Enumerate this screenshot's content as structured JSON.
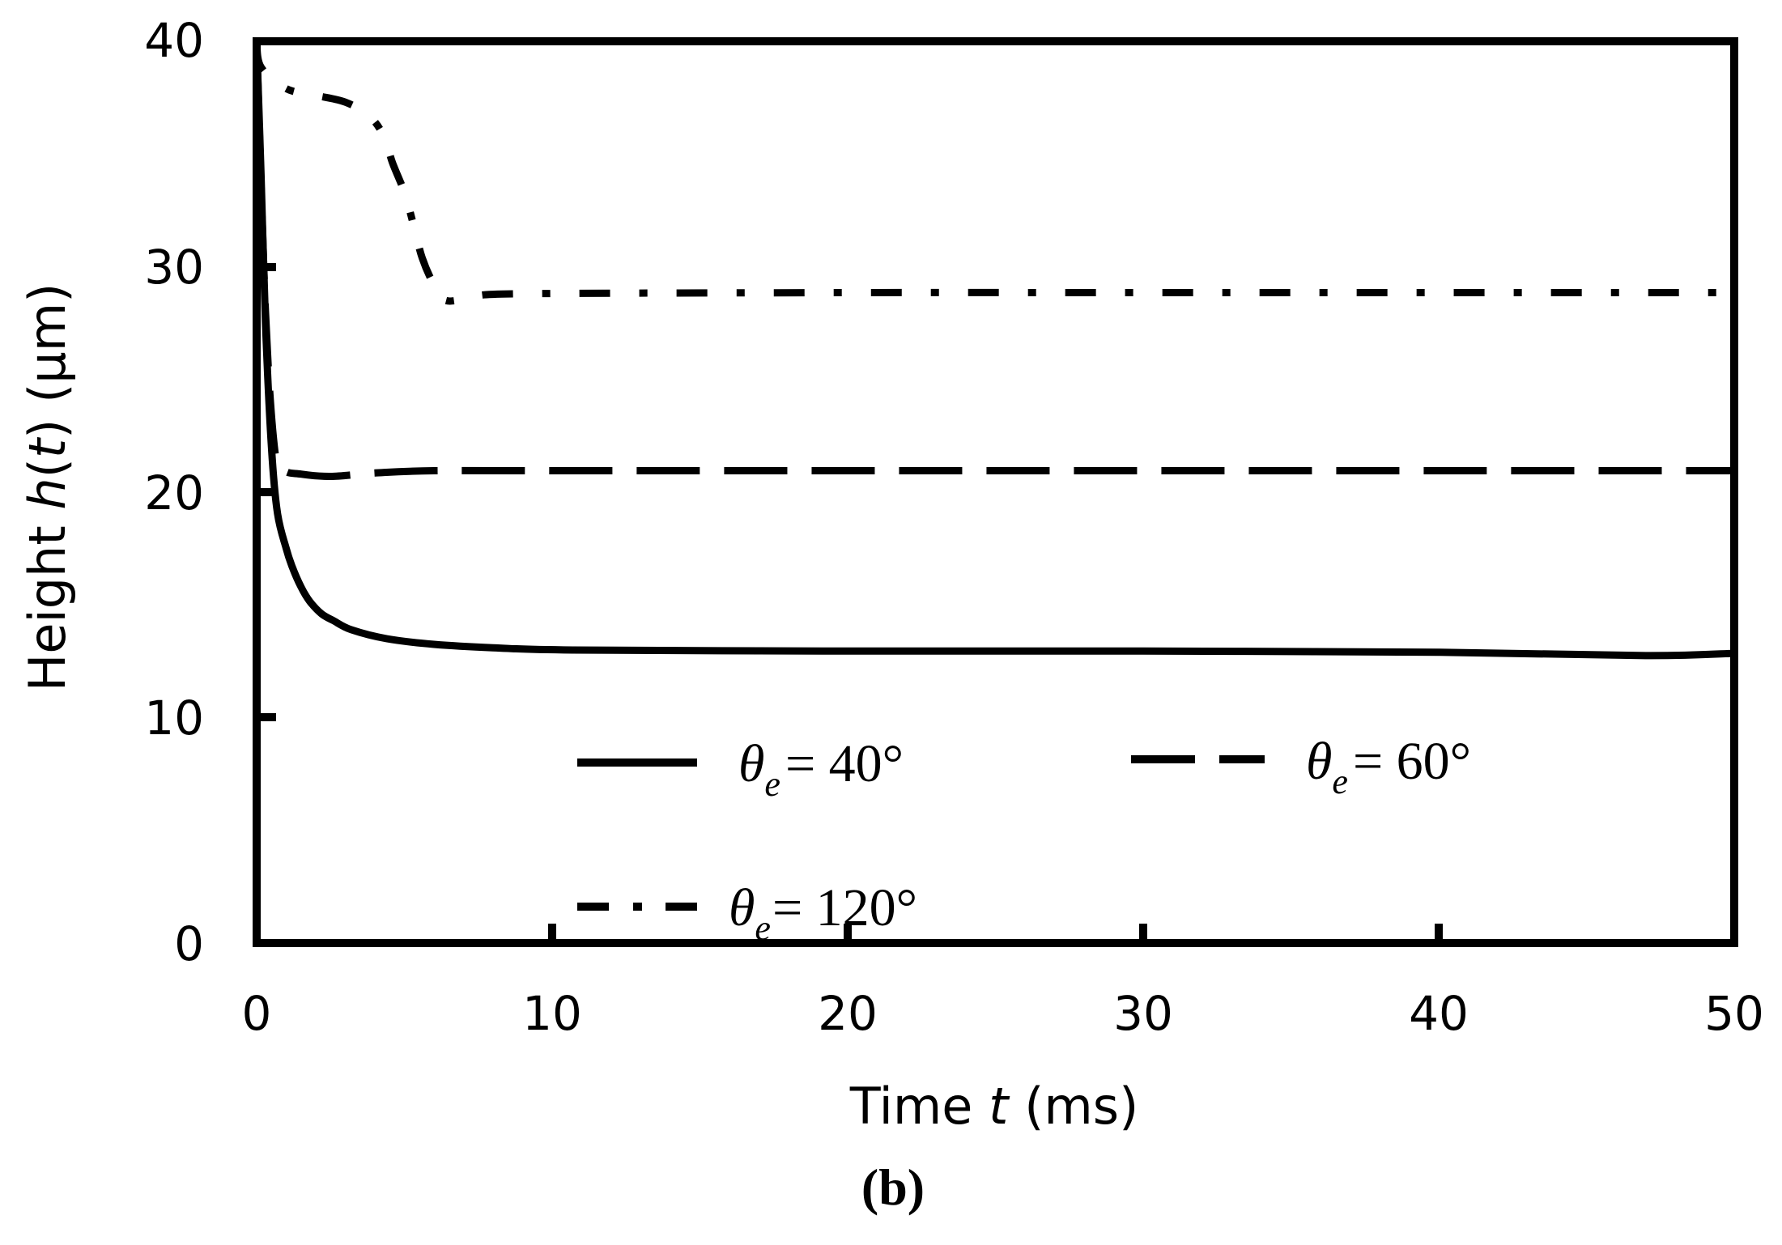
{
  "figure": {
    "panel_label": "(b)"
  },
  "axes": {
    "xlabel_prefix": "Time ",
    "xlabel_var": "t",
    "xlabel_suffix": " (ms)",
    "ylabel_prefix": "Height ",
    "ylabel_var": "h",
    "ylabel_paren_open": "(",
    "ylabel_arg": "t",
    "ylabel_suffix": ") (μm)",
    "xticks": [
      "0",
      "10",
      "20",
      "30",
      "40",
      "50"
    ],
    "yticks": [
      "0",
      "10",
      "20",
      "30",
      "40"
    ]
  },
  "legend": {
    "items": [
      {
        "symbol": "θ",
        "sub": "e",
        "text": "= 40°",
        "style": "solid"
      },
      {
        "symbol": "θ",
        "sub": "e",
        "text": "= 60°",
        "style": "dashed"
      },
      {
        "symbol": "θ",
        "sub": "e",
        "text": "= 120°",
        "style": "dashdot"
      }
    ]
  },
  "chart_data": {
    "type": "line",
    "title": "",
    "xlabel": "Time t (ms)",
    "ylabel": "Height h(t) (μm)",
    "xlim": [
      0,
      50
    ],
    "ylim": [
      0,
      40
    ],
    "grid": false,
    "legend_position": "inside lower center",
    "xticks": [
      0,
      10,
      20,
      30,
      40,
      50
    ],
    "yticks": [
      0,
      10,
      20,
      30,
      40
    ],
    "series": [
      {
        "name": "θe = 40°",
        "style": "solid",
        "x": [
          0,
          0.15,
          0.3,
          0.5,
          0.7,
          1.0,
          1.2,
          1.5,
          1.8,
          2.2,
          2.6,
          3.2,
          4.4,
          6,
          8,
          10.7,
          20,
          30,
          40,
          47,
          50
        ],
        "y": [
          40,
          34,
          27.5,
          22,
          19.1,
          17.5,
          16.7,
          15.8,
          15.15,
          14.6,
          14.3,
          13.9,
          13.5,
          13.25,
          13.1,
          13.0,
          12.95,
          12.95,
          12.9,
          12.75,
          12.85
        ]
      },
      {
        "name": "θe = 60°",
        "style": "dashed",
        "x": [
          0,
          0.3,
          0.6,
          0.9,
          1.5,
          2.5,
          4,
          6,
          10,
          20,
          30,
          40,
          50
        ],
        "y": [
          40,
          28,
          22,
          21.0,
          20.8,
          20.7,
          20.85,
          20.95,
          20.95,
          20.95,
          20.95,
          20.95,
          20.95
        ]
      },
      {
        "name": "θe = 120°",
        "style": "dashdot",
        "x": [
          0,
          0.15,
          1.0,
          2.0,
          3.0,
          3.8,
          4.3,
          4.6,
          5.0,
          5.3,
          5.6,
          6.0,
          6.4,
          7.4,
          9,
          20,
          30,
          40,
          50
        ],
        "y": [
          40,
          38.85,
          37.9,
          37.6,
          37.3,
          36.7,
          35.8,
          34.6,
          33.3,
          31.9,
          30.4,
          29.2,
          28.5,
          28.65,
          28.8,
          28.85,
          28.85,
          28.85,
          28.85
        ]
      }
    ]
  }
}
